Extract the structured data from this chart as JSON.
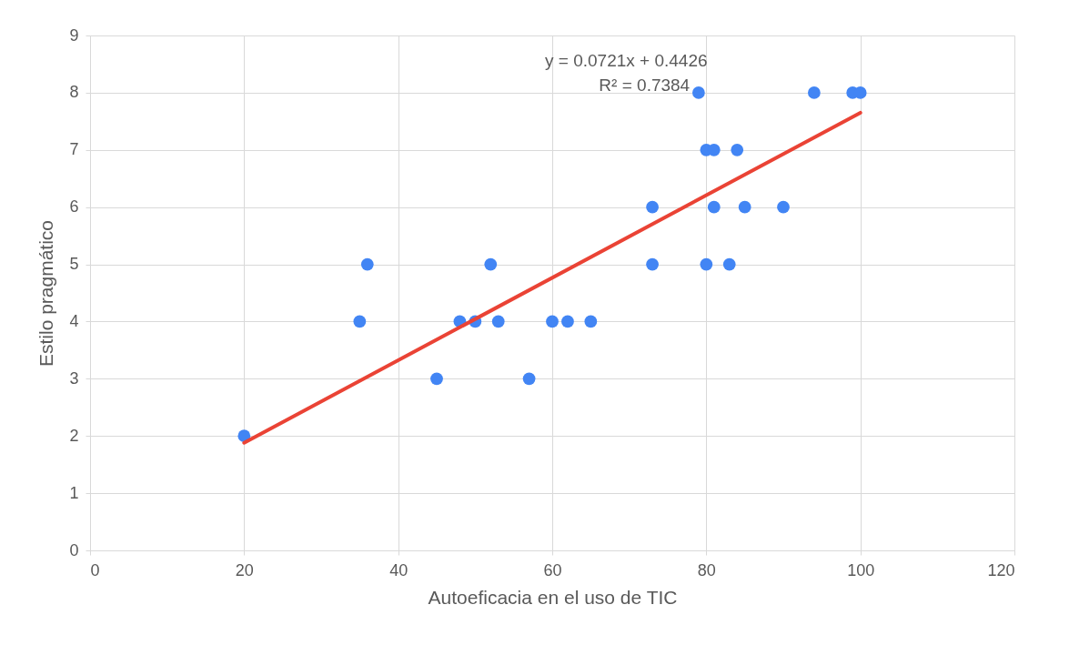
{
  "chart_data": {
    "type": "scatter",
    "xlabel": "Autoeficacia en el uso de TIC",
    "ylabel": "Estilo pragmático",
    "annotations": [
      "y = 0.0721x + 0.4426",
      "R² = 0.7384"
    ],
    "xlim": [
      0,
      120
    ],
    "xticks": [
      0,
      20,
      40,
      60,
      80,
      100,
      120
    ],
    "ylim": [
      0,
      9
    ],
    "yticks": [
      0,
      1,
      2,
      3,
      4,
      5,
      6,
      7,
      8,
      9
    ],
    "grid": true,
    "series": [
      {
        "marker": "circle",
        "color": "#4285f4",
        "x": [
          20,
          35,
          36,
          45,
          48,
          50,
          52,
          53,
          57,
          60,
          62,
          65,
          73,
          73,
          79,
          80,
          81,
          80,
          81,
          84,
          83,
          85,
          90,
          94,
          99,
          100
        ],
        "values": [
          2,
          4,
          5,
          3,
          4,
          4,
          5,
          4,
          3,
          4,
          4,
          4,
          6,
          5,
          8,
          7,
          7,
          5,
          6,
          7,
          5,
          6,
          6,
          8,
          8,
          8
        ]
      },
      {
        "type": "line",
        "marker": "none",
        "color": "#ea4335",
        "x": [
          20,
          100
        ],
        "values": [
          1.88,
          7.65
        ]
      }
    ]
  }
}
